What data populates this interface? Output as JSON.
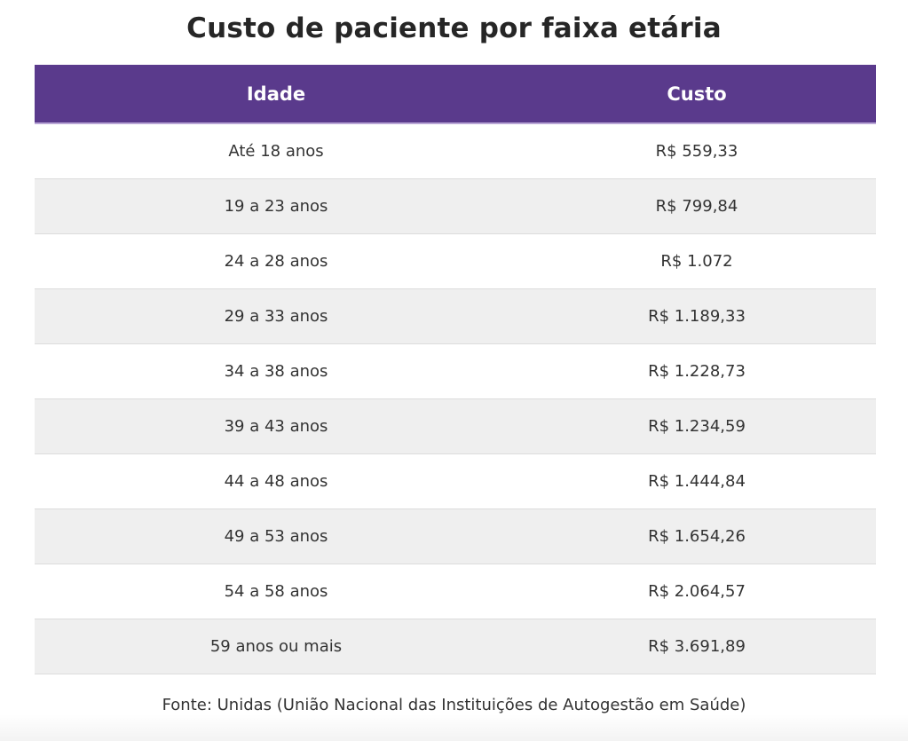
{
  "title": "Custo de paciente por faixa etária",
  "table": {
    "headers": [
      "Idade",
      "Custo"
    ],
    "rows": [
      [
        "Até 18 anos",
        "R$ 559,33"
      ],
      [
        "19 a 23 anos",
        "R$ 799,84"
      ],
      [
        "24 a 28 anos",
        "R$ 1.072"
      ],
      [
        "29 a 33 anos",
        "R$ 1.189,33"
      ],
      [
        "34 a 38 anos",
        "R$ 1.228,73"
      ],
      [
        "39 a 43 anos",
        "R$ 1.234,59"
      ],
      [
        "44 a 48 anos",
        "R$ 1.444,84"
      ],
      [
        "49 a 53 anos",
        "R$ 1.654,26"
      ],
      [
        "54 a 58 anos",
        "R$ 2.064,57"
      ],
      [
        "59 anos ou mais",
        "R$ 3.691,89"
      ]
    ]
  },
  "source": "Fonte: Unidas (União Nacional das Instituições de Autogestão em Saúde)",
  "colors": {
    "header_background": "#5a3a8c",
    "header_text": "#ffffff",
    "stripe": "#efefef"
  }
}
